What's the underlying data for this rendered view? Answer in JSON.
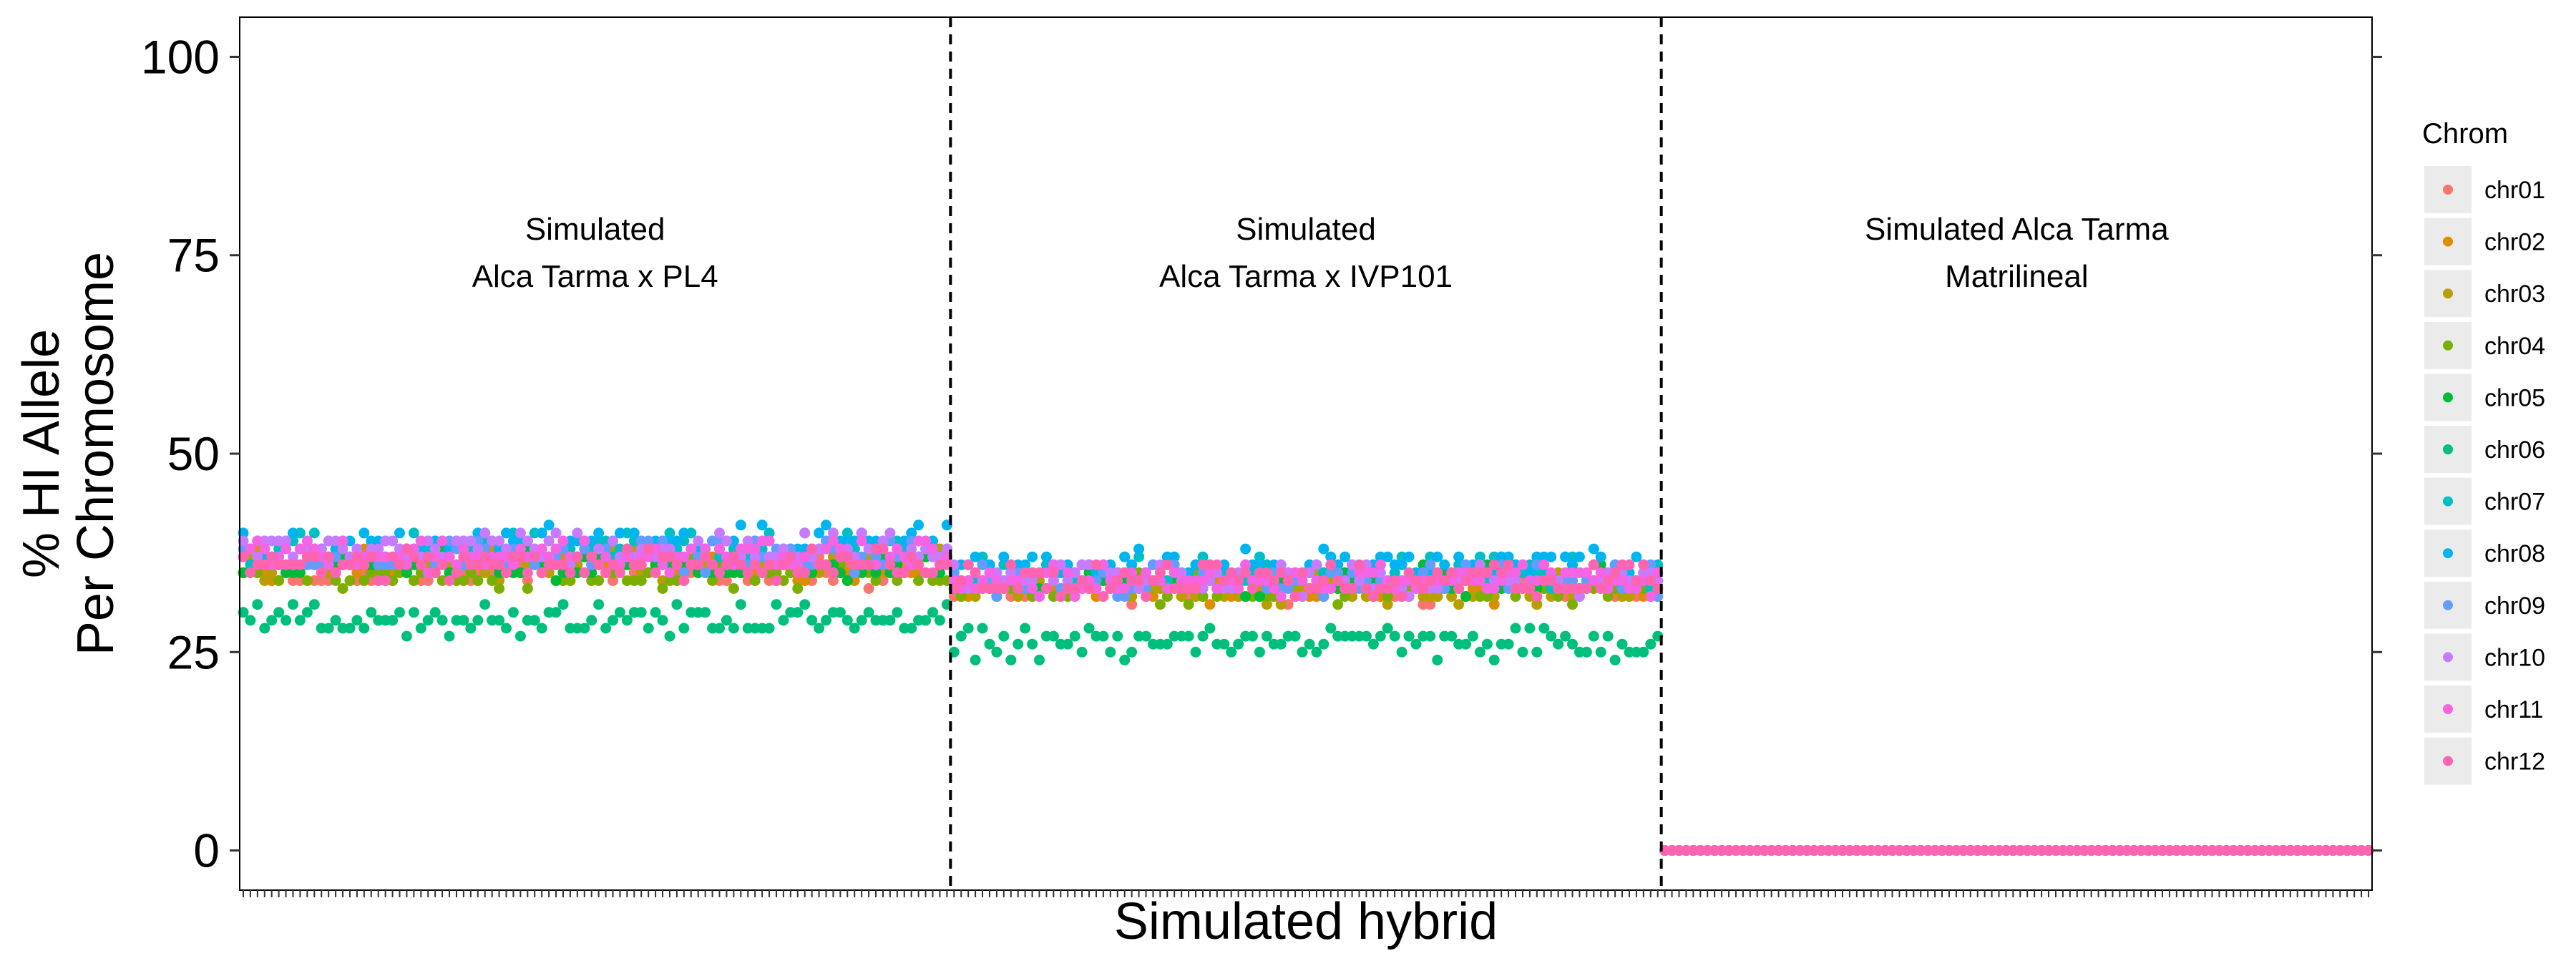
{
  "chart_data": {
    "type": "scatter",
    "xlabel": "Simulated hybrid",
    "ylabel_lines": [
      "% HI Allele",
      "Per Chromosome"
    ],
    "ylim": [
      -5,
      105
    ],
    "yticks": [
      0,
      25,
      50,
      75,
      100
    ],
    "grid": false,
    "legend_position": "right",
    "legend_title": "Chrom",
    "panels": [
      {
        "label_lines": [
          "Simulated",
          "Alca Tarma x PL4"
        ],
        "n_hybrids": 100
      },
      {
        "label_lines": [
          "Simulated",
          "Alca Tarma x IVP101"
        ],
        "n_hybrids": 100
      },
      {
        "label_lines": [
          "Simulated Alca Tarma",
          "Matrilineal"
        ],
        "n_hybrids": 100
      }
    ],
    "vlines": [
      100.5,
      200.5
    ],
    "series": [
      {
        "name": "chr01",
        "color": "#F8766D",
        "panel_means": [
          35,
          33,
          0
        ]
      },
      {
        "name": "chr02",
        "color": "#DE8C00",
        "panel_means": [
          36,
          33,
          0
        ]
      },
      {
        "name": "chr03",
        "color": "#B79F00",
        "panel_means": [
          36,
          33,
          0
        ]
      },
      {
        "name": "chr04",
        "color": "#7CAE00",
        "panel_means": [
          35,
          33,
          0
        ]
      },
      {
        "name": "chr05",
        "color": "#00BA38",
        "panel_means": [
          36,
          34,
          0
        ]
      },
      {
        "name": "chr06",
        "color": "#00BF7D",
        "panel_means": [
          29,
          26,
          0
        ]
      },
      {
        "name": "chr07",
        "color": "#00BFC4",
        "panel_means": [
          38,
          35,
          0
        ]
      },
      {
        "name": "chr08",
        "color": "#00B4F0",
        "panel_means": [
          39,
          36,
          0
        ]
      },
      {
        "name": "chr09",
        "color": "#619CFF",
        "panel_means": [
          37,
          34,
          0
        ]
      },
      {
        "name": "chr10",
        "color": "#C77CFF",
        "panel_means": [
          38,
          34,
          0
        ]
      },
      {
        "name": "chr11",
        "color": "#F564E3",
        "panel_means": [
          37,
          34,
          0
        ]
      },
      {
        "name": "chr12",
        "color": "#FF64B0",
        "panel_means": [
          36,
          34,
          0
        ]
      }
    ]
  }
}
